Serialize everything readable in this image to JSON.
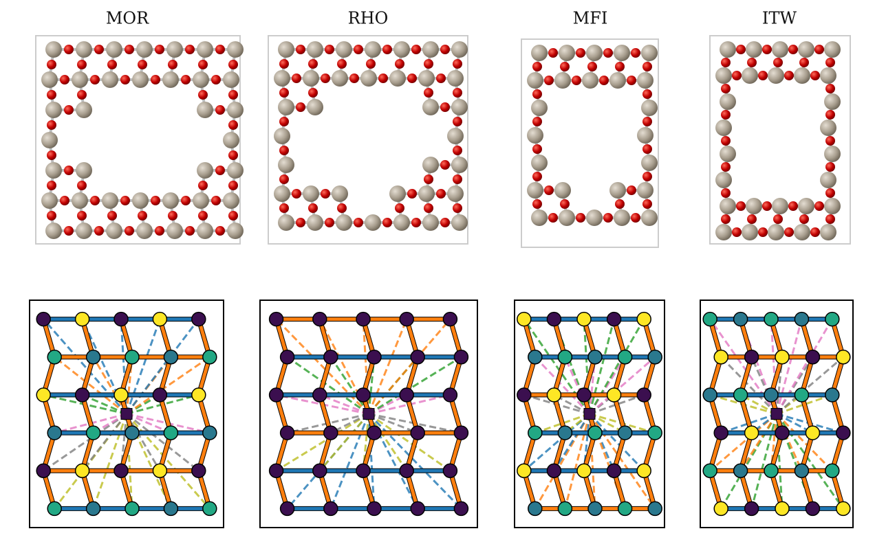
{
  "panels": [
    {
      "title": "MOR"
    },
    {
      "title": "RHO"
    },
    {
      "title": "MFI"
    },
    {
      "title": "ITW"
    }
  ]
}
